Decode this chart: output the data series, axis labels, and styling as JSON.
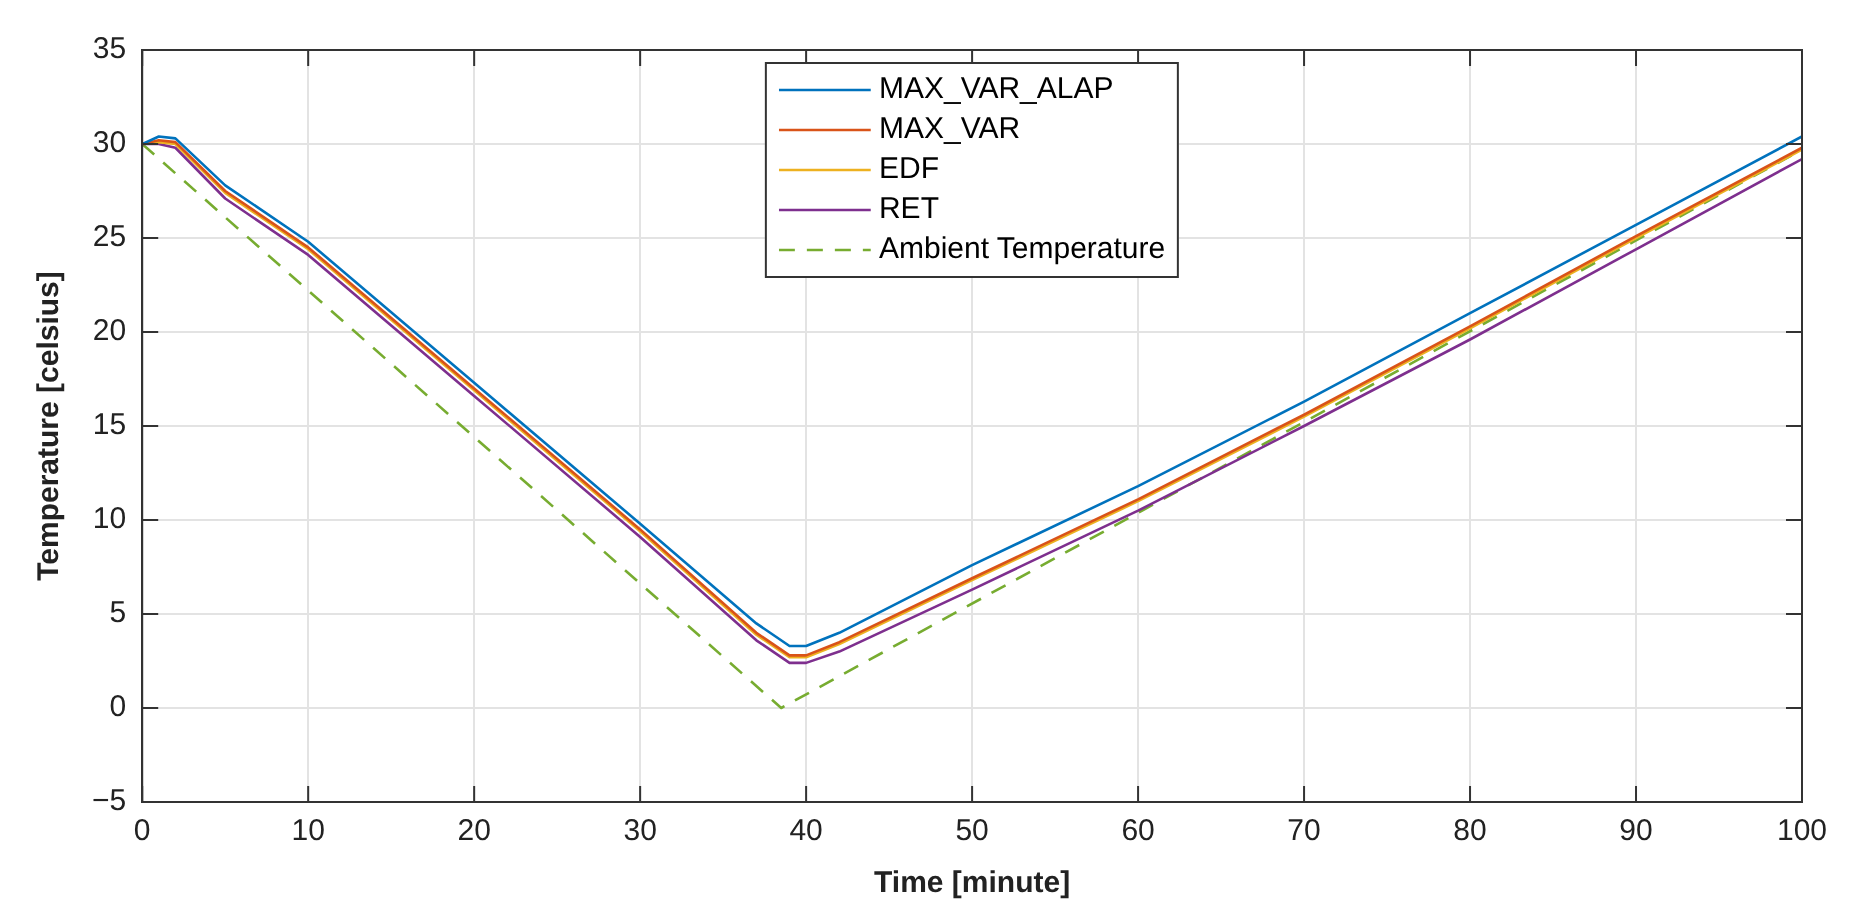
{
  "chart_data": {
    "type": "line",
    "xlabel": "Time [minute]",
    "ylabel": "Temperature [celsius]",
    "xlim": [
      0,
      100
    ],
    "xticks": [
      0,
      10,
      20,
      30,
      40,
      50,
      60,
      70,
      80,
      90,
      100
    ],
    "ylim": [
      -5,
      35
    ],
    "yticks": [
      -5,
      0,
      5,
      10,
      15,
      20,
      25,
      30,
      35
    ],
    "grid": true,
    "legend": "top",
    "marker": "none",
    "series": [
      {
        "name": "MAX_VAR_ALAP",
        "color": "#0072bd",
        "x": [
          0,
          1,
          2,
          5,
          10,
          20,
          30,
          37,
          39,
          40,
          42,
          50,
          60,
          70,
          80,
          90,
          100
        ],
        "values": [
          30,
          30.4,
          30.3,
          27.8,
          24.8,
          17.3,
          9.8,
          4.5,
          3.3,
          3.3,
          4,
          7.6,
          11.8,
          16.3,
          21,
          25.7,
          30.4
        ]
      },
      {
        "name": "MAX_VAR",
        "color": "#d95319",
        "x": [
          0,
          1,
          2,
          5,
          10,
          20,
          30,
          37,
          39,
          40,
          42,
          50,
          60,
          70,
          80,
          90,
          100
        ],
        "values": [
          30,
          30.2,
          30.1,
          27.5,
          24.5,
          17,
          9.5,
          4,
          2.8,
          2.8,
          3.5,
          6.9,
          11.1,
          15.6,
          20.3,
          25.1,
          29.8
        ]
      },
      {
        "name": "EDF",
        "color": "#edb120",
        "x": [
          0,
          1,
          2,
          5,
          10,
          20,
          30,
          37,
          39,
          40,
          42,
          50,
          60,
          70,
          80,
          90,
          100
        ],
        "values": [
          30,
          30.1,
          30,
          27.4,
          24.4,
          16.9,
          9.4,
          3.9,
          2.7,
          2.7,
          3.4,
          6.8,
          11,
          15.5,
          20.2,
          25,
          29.7
        ]
      },
      {
        "name": "RET",
        "color": "#7e2f8e",
        "x": [
          0,
          1,
          2,
          5,
          10,
          20,
          30,
          37,
          39,
          40,
          42,
          50,
          60,
          70,
          80,
          90,
          100
        ],
        "values": [
          30,
          30,
          29.8,
          27.1,
          24.1,
          16.6,
          9.1,
          3.6,
          2.4,
          2.4,
          3,
          6.3,
          10.5,
          15,
          19.6,
          24.4,
          29.2
        ]
      },
      {
        "name": "Ambient Temperature",
        "color": "#77ac30",
        "line_style": "dashed",
        "x": [
          0,
          38.5,
          100
        ],
        "values": [
          30,
          0,
          29.7
        ]
      }
    ]
  }
}
